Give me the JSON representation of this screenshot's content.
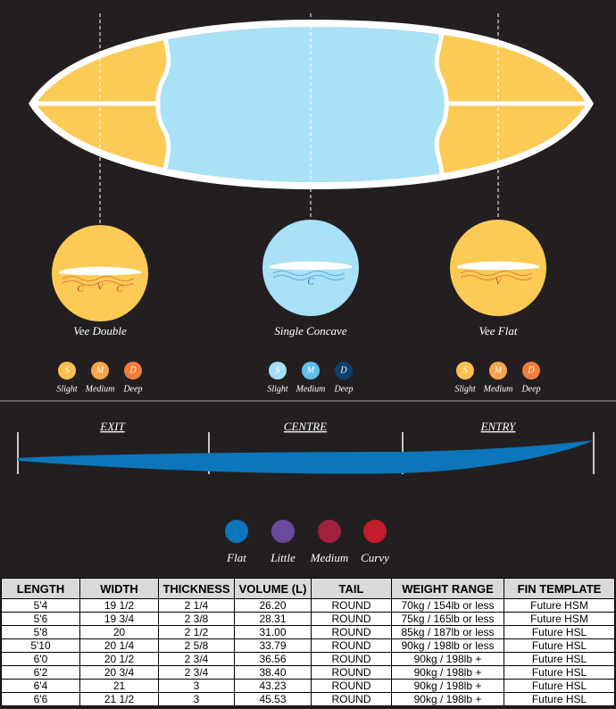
{
  "bottom_contours": [
    {
      "name": "Vee Double",
      "letters": [
        "C",
        "V",
        "C"
      ],
      "color": "#fccb56",
      "letter_color": "#d2402b"
    },
    {
      "name": "Single Concave",
      "letters": [
        "C"
      ],
      "color": "#a9e1f7",
      "letter_color": "#1a7fc0"
    },
    {
      "name": "Vee Flat",
      "letters": [
        "V"
      ],
      "color": "#fccb56",
      "letter_color": "#d2402b"
    }
  ],
  "depth_scales": [
    {
      "levels": [
        {
          "letter": "S",
          "label": "Slight",
          "color": "#f9c24f"
        },
        {
          "letter": "M",
          "label": "Medium",
          "color": "#f6a54a"
        },
        {
          "letter": "D",
          "label": "Deep",
          "color": "#ef7d3c"
        }
      ]
    },
    {
      "levels": [
        {
          "letter": "S",
          "label": "Slight",
          "color": "#a6def5"
        },
        {
          "letter": "M",
          "label": "Medium",
          "color": "#5ec0ea"
        },
        {
          "letter": "D",
          "label": "Deep",
          "color": "#0b3f6e"
        }
      ]
    },
    {
      "levels": [
        {
          "letter": "S",
          "label": "Slight",
          "color": "#f9c24f"
        },
        {
          "letter": "M",
          "label": "Medium",
          "color": "#f6a54a"
        },
        {
          "letter": "D",
          "label": "Deep",
          "color": "#ef7d3c"
        }
      ]
    }
  ],
  "rocker": {
    "sections": [
      "EXIT",
      "CENTRE",
      "ENTRY"
    ],
    "legend": [
      {
        "label": "Flat",
        "color": "#0b76b9"
      },
      {
        "label": "Little",
        "color": "#6b4a9d"
      },
      {
        "label": "Medium",
        "color": "#a1203e"
      },
      {
        "label": "Curvy",
        "color": "#c41d2e"
      }
    ]
  },
  "table": {
    "headers": [
      "LENGTH",
      "WIDTH",
      "THICKNESS",
      "VOLUME (L)",
      "TAIL",
      "WEIGHT RANGE",
      "FIN TEMPLATE"
    ],
    "rows": [
      [
        "5'4",
        "19 1/2",
        "2 1/4",
        "26.20",
        "ROUND",
        "70kg / 154lb or less",
        "Future HSM"
      ],
      [
        "5'6",
        "19 3/4",
        "2 3/8",
        "28.31",
        "ROUND",
        "75kg / 165lb or less",
        "Future HSM"
      ],
      [
        "5'8",
        "20",
        "2 1/2",
        "31.00",
        "ROUND",
        "85kg / 187lb or less",
        "Future HSL"
      ],
      [
        "5'10",
        "20 1/4",
        "2 5/8",
        "33.79",
        "ROUND",
        "90kg / 198lb or less",
        "Future HSL"
      ],
      [
        "6'0",
        "20 1/2",
        "2 3/4",
        "36.56",
        "ROUND",
        "90kg / 198lb +",
        "Future HSL"
      ],
      [
        "6'2",
        "20 3/4",
        "2 3/4",
        "38.40",
        "ROUND",
        "90kg / 198lb +",
        "Future HSL"
      ],
      [
        "6'4",
        "21",
        "3",
        "43.23",
        "ROUND",
        "90kg / 198lb +",
        "Future HSL"
      ],
      [
        "6'6",
        "21 1/2",
        "3",
        "45.53",
        "ROUND",
        "90kg / 198lb +",
        "Future HSL"
      ]
    ]
  }
}
